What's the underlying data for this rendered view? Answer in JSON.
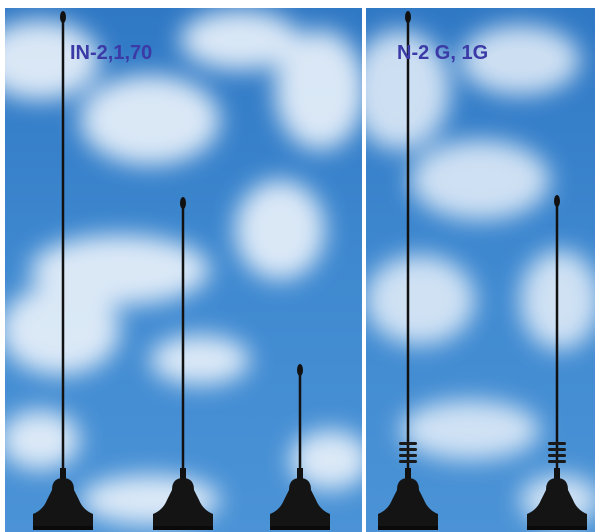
{
  "panels": [
    {
      "label": "IN-2,1,70"
    },
    {
      "label": "N-2 G, 1G"
    }
  ]
}
